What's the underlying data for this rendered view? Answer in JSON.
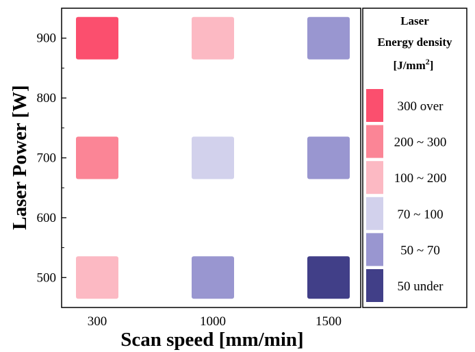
{
  "chart_data": {
    "type": "heatmap",
    "xlabel": "Scan speed [mm/min]",
    "ylabel": "Laser Power [W]",
    "x_categories": [
      "300",
      "1000",
      "1500"
    ],
    "y_ticks": [
      "500",
      "600",
      "700",
      "800",
      "900"
    ],
    "ylim": [
      450,
      950
    ],
    "cells": [
      {
        "x": "300",
        "y": 900,
        "class_index": 0
      },
      {
        "x": "1000",
        "y": 900,
        "class_index": 2
      },
      {
        "x": "1500",
        "y": 900,
        "class_index": 4
      },
      {
        "x": "300",
        "y": 700,
        "class_index": 1
      },
      {
        "x": "1000",
        "y": 700,
        "class_index": 3
      },
      {
        "x": "1500",
        "y": 700,
        "class_index": 4
      },
      {
        "x": "300",
        "y": 500,
        "class_index": 2
      },
      {
        "x": "1000",
        "y": 500,
        "class_index": 4
      },
      {
        "x": "1500",
        "y": 500,
        "class_index": 5
      }
    ],
    "legend": {
      "title_line1": "Laser",
      "title_line2": "Energy density",
      "title_unit_prefix": "[J/mm",
      "title_unit_sup": "2",
      "title_unit_suffix": "]",
      "placement": "right",
      "items": [
        {
          "label": "300 over",
          "color": "#fb4f6e"
        },
        {
          "label": "200 ~ 300",
          "color": "#fb8596"
        },
        {
          "label": "100 ~ 200",
          "color": "#fcb9c3"
        },
        {
          "label": "70 ~ 100",
          "color": "#d2d1ec"
        },
        {
          "label": "50 ~ 70",
          "color": "#9996d0"
        },
        {
          "label": "50 under",
          "color": "#413f88"
        }
      ]
    }
  }
}
